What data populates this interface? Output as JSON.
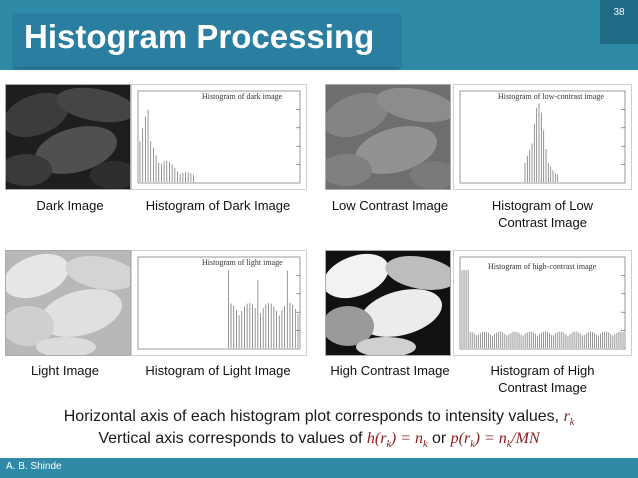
{
  "slide": {
    "title": "Histogram Processing",
    "page_number": "38",
    "author": "A. B. Shinde",
    "colors": {
      "header": "#2f8aa8",
      "math": "#8b1a1a"
    }
  },
  "panels": [
    {
      "image_caption": "Dark Image",
      "histogram_caption": "Histogram of Dark Image",
      "histogram_title": "Histogram of dark image",
      "tone": "dark"
    },
    {
      "image_caption": "Low Contrast Image",
      "histogram_caption": "Histogram of Low Contrast Image",
      "histogram_title": "Histogram of low-contrast image",
      "tone": "low"
    },
    {
      "image_caption": "Light Image",
      "histogram_caption": "Histogram of Light Image",
      "histogram_title": "Histogram of light image",
      "tone": "light"
    },
    {
      "image_caption": "High Contrast Image",
      "histogram_caption": "Histogram of High Contrast Image",
      "histogram_title": "Histogram of high-contrast image",
      "tone": "high"
    }
  ],
  "notes": {
    "line1_text": "Horizontal axis of each histogram plot corresponds to intensity values,",
    "line1_var": "r",
    "line1_sub": "k",
    "line2_text": "Vertical axis corresponds to values of",
    "line2_or": "or"
  }
}
